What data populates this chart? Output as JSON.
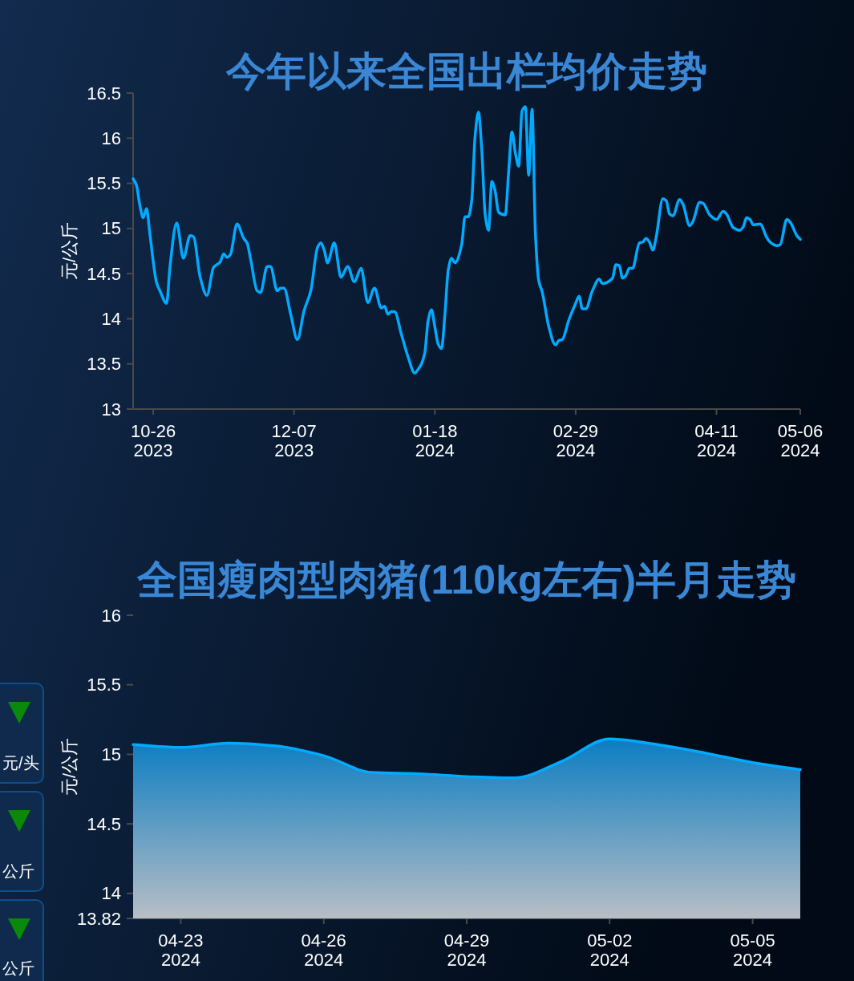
{
  "chart_data": [
    {
      "type": "line",
      "title": "今年以来全国出栏均价走势",
      "ylabel": "元/公斤",
      "x": [
        "2023-10-20",
        "2023-10-21",
        "2023-10-22",
        "2023-10-23",
        "2023-10-24",
        "2023-10-25",
        "2023-10-27",
        "2023-10-28",
        "2023-10-30",
        "2023-10-31",
        "2023-11-02",
        "2023-11-04",
        "2023-11-06",
        "2023-11-07",
        "2023-11-09",
        "2023-11-11",
        "2023-11-13",
        "2023-11-15",
        "2023-11-16",
        "2023-11-17",
        "2023-11-18",
        "2023-11-20",
        "2023-11-22",
        "2023-11-23",
        "2023-11-24",
        "2023-11-26",
        "2023-11-27",
        "2023-11-29",
        "2023-11-30",
        "2023-12-02",
        "2023-12-03",
        "2023-12-04",
        "2023-12-06",
        "2023-12-08",
        "2023-12-10",
        "2023-12-12",
        "2023-12-14",
        "2023-12-15",
        "2023-12-16",
        "2023-12-17",
        "2023-12-19",
        "2023-12-21",
        "2023-12-23",
        "2023-12-25",
        "2023-12-27",
        "2023-12-29",
        "2023-12-31",
        "2024-01-02",
        "2024-01-03",
        "2024-01-04",
        "2024-01-05",
        "2024-01-06",
        "2024-01-08",
        "2024-01-10",
        "2024-01-12",
        "2024-01-13",
        "2024-01-14",
        "2024-01-15",
        "2024-01-16",
        "2024-01-17",
        "2024-01-18",
        "2024-01-19",
        "2024-01-20",
        "2024-01-21",
        "2024-01-22",
        "2024-01-23",
        "2024-01-24",
        "2024-01-26",
        "2024-01-27",
        "2024-01-28",
        "2024-01-29",
        "2024-01-30",
        "2024-01-31",
        "2024-02-01",
        "2024-02-02",
        "2024-02-03",
        "2024-02-04",
        "2024-02-05",
        "2024-02-06",
        "2024-02-08",
        "2024-02-09",
        "2024-02-10",
        "2024-02-11",
        "2024-02-12",
        "2024-02-13",
        "2024-02-14",
        "2024-02-15",
        "2024-02-16",
        "2024-02-17",
        "2024-02-18",
        "2024-02-19",
        "2024-02-21",
        "2024-02-23",
        "2024-02-24",
        "2024-02-25",
        "2024-02-27",
        "2024-02-29",
        "2024-03-01",
        "2024-03-02",
        "2024-03-03",
        "2024-03-05",
        "2024-03-07",
        "2024-03-08",
        "2024-03-11",
        "2024-03-12",
        "2024-03-13",
        "2024-03-14",
        "2024-03-15",
        "2024-03-16",
        "2024-03-17",
        "2024-03-19",
        "2024-03-20",
        "2024-03-21",
        "2024-03-22",
        "2024-03-23",
        "2024-03-24",
        "2024-03-26",
        "2024-03-27",
        "2024-03-28",
        "2024-03-29",
        "2024-03-31",
        "2024-04-01",
        "2024-04-03",
        "2024-04-04",
        "2024-04-06",
        "2024-04-07",
        "2024-04-09",
        "2024-04-11",
        "2024-04-13",
        "2024-04-14",
        "2024-04-16",
        "2024-04-18",
        "2024-04-19",
        "2024-04-20",
        "2024-04-21",
        "2024-04-22",
        "2024-04-24",
        "2024-04-26",
        "2024-04-27",
        "2024-04-29",
        "2024-04-30",
        "2024-05-02",
        "2024-05-03",
        "2024-05-05",
        "2024-05-06"
      ],
      "series": [
        {
          "color": "#00aaff",
          "values": [
            15.55,
            15.48,
            15.26,
            15.12,
            15.22,
            14.94,
            14.4,
            14.31,
            14.17,
            14.58,
            15.06,
            14.67,
            14.92,
            14.91,
            14.46,
            14.26,
            14.57,
            14.63,
            14.72,
            14.68,
            14.71,
            15.05,
            14.89,
            14.84,
            14.67,
            14.31,
            14.29,
            14.58,
            14.58,
            14.31,
            14.34,
            14.34,
            14.05,
            13.77,
            14.09,
            14.31,
            14.79,
            14.84,
            14.76,
            14.62,
            14.84,
            14.46,
            14.58,
            14.41,
            14.56,
            14.18,
            14.34,
            14.12,
            14.14,
            14.05,
            14.08,
            14.08,
            13.83,
            13.58,
            13.4,
            13.44,
            13.5,
            13.62,
            13.98,
            14.1,
            13.91,
            13.72,
            13.67,
            14.05,
            14.54,
            14.67,
            14.62,
            14.82,
            15.13,
            15.13,
            15.31,
            16.02,
            16.29,
            15.87,
            15.16,
            14.98,
            15.52,
            15.41,
            15.18,
            15.15,
            15.62,
            16.07,
            15.84,
            15.69,
            16.3,
            16.35,
            15.59,
            16.32,
            14.94,
            14.42,
            14.3,
            13.91,
            13.71,
            13.76,
            13.77,
            13.99,
            14.17,
            14.25,
            14.11,
            14.11,
            14.31,
            14.44,
            14.39,
            14.45,
            14.6,
            14.59,
            14.45,
            14.48,
            14.56,
            14.56,
            14.84,
            14.85,
            14.89,
            14.85,
            14.76,
            14.9,
            15.33,
            15.31,
            15.16,
            15.14,
            15.32,
            15.27,
            15.03,
            15.08,
            15.29,
            15.28,
            15.15,
            15.1,
            15.19,
            15.16,
            15.01,
            14.98,
            15.02,
            15.12,
            15.1,
            15.04,
            15.05,
            14.9,
            14.85,
            14.81,
            14.82,
            15.1,
            15.07,
            14.92,
            14.88
          ]
        }
      ],
      "xlim": [
        "2023-10-20",
        "2024-05-06"
      ],
      "xticks": [
        {
          "value": "2023-10-26",
          "label": "10-26\n2023"
        },
        {
          "value": "2023-12-07",
          "label": "12-07\n2023"
        },
        {
          "value": "2024-01-18",
          "label": "01-18\n2024"
        },
        {
          "value": "2024-02-29",
          "label": "02-29\n2024"
        },
        {
          "value": "2024-04-11",
          "label": "04-11\n2024"
        },
        {
          "value": "2024-05-06",
          "label": "05-06\n2024"
        }
      ],
      "ylim": [
        13,
        16.5
      ],
      "yticks": [
        13,
        13.5,
        14,
        14.5,
        15,
        15.5,
        16,
        16.5
      ]
    },
    {
      "type": "area",
      "title": "全国瘦肉型肉猪(110kg左右)半月走势",
      "ylabel": "元/公斤",
      "x": [
        "2024-04-22",
        "2024-04-23",
        "2024-04-24",
        "2024-04-25",
        "2024-04-26",
        "2024-04-27",
        "2024-04-28",
        "2024-04-29",
        "2024-04-30",
        "2024-05-01",
        "2024-05-02",
        "2024-05-03",
        "2024-05-04",
        "2024-05-05",
        "2024-05-06"
      ],
      "series": [
        {
          "color": "#00aaff",
          "values": [
            15.07,
            15.05,
            15.08,
            15.06,
            14.99,
            14.87,
            14.86,
            14.84,
            14.83,
            14.95,
            15.11,
            15.07,
            15.01,
            14.94,
            14.89
          ]
        }
      ],
      "xlim": [
        "2024-04-22",
        "2024-05-06"
      ],
      "xticks": [
        {
          "value": "2024-04-23",
          "label": "04-23\n2024"
        },
        {
          "value": "2024-04-26",
          "label": "04-26\n2024"
        },
        {
          "value": "2024-04-29",
          "label": "04-29\n2024"
        },
        {
          "value": "2024-05-02",
          "label": "05-02\n2024"
        },
        {
          "value": "2024-05-05",
          "label": "05-05\n2024"
        }
      ],
      "ylim": [
        13.82,
        16
      ],
      "yticks": [
        13.82,
        14,
        14.5,
        15,
        15.5,
        16
      ]
    },
    {
      "type": "other",
      "annotations": [
        "元/头",
        "公斤",
        "公斤"
      ]
    }
  ]
}
